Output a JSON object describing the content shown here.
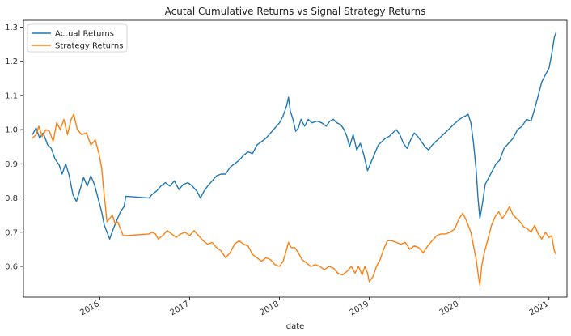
{
  "chart_data": {
    "type": "line",
    "title": "Acutal Cumulative Returns vs Signal Strategy Returns",
    "xlabel": "date",
    "ylabel": "",
    "x_range": [
      2015.15,
      2021.2
    ],
    "ylim": [
      0.51,
      1.32
    ],
    "y_ticks": [
      0.6,
      0.7,
      0.8,
      0.9,
      1.0,
      1.1,
      1.2,
      1.3
    ],
    "y_tick_labels": [
      "0.6",
      "0.7",
      "0.8",
      "0.9",
      "1.0",
      "1.1",
      "1.2",
      "1.3"
    ],
    "x_ticks": [
      2016,
      2017,
      2018,
      2019,
      2020,
      2021
    ],
    "x_tick_labels": [
      "2016",
      "2017",
      "2018",
      "2019",
      "2020",
      "2021"
    ],
    "grid": false,
    "legend_position": "top-left",
    "series": [
      {
        "name": "Actual Returns",
        "color": "#1f77b4",
        "points": [
          [
            2015.25,
            0.985
          ],
          [
            2015.29,
            1.005
          ],
          [
            2015.33,
            0.975
          ],
          [
            2015.37,
            0.99
          ],
          [
            2015.42,
            0.955
          ],
          [
            2015.46,
            0.945
          ],
          [
            2015.5,
            0.915
          ],
          [
            2015.55,
            0.895
          ],
          [
            2015.58,
            0.87
          ],
          [
            2015.62,
            0.9
          ],
          [
            2015.66,
            0.865
          ],
          [
            2015.7,
            0.81
          ],
          [
            2015.74,
            0.79
          ],
          [
            2015.78,
            0.825
          ],
          [
            2015.82,
            0.86
          ],
          [
            2015.86,
            0.835
          ],
          [
            2015.9,
            0.865
          ],
          [
            2015.94,
            0.84
          ],
          [
            2015.98,
            0.8
          ],
          [
            2016.02,
            0.76
          ],
          [
            2016.05,
            0.72
          ],
          [
            2016.08,
            0.7
          ],
          [
            2016.11,
            0.68
          ],
          [
            2016.15,
            0.71
          ],
          [
            2016.19,
            0.735
          ],
          [
            2016.23,
            0.76
          ],
          [
            2016.27,
            0.775
          ],
          [
            2016.29,
            0.805
          ],
          [
            2016.55,
            0.8
          ],
          [
            2016.58,
            0.81
          ],
          [
            2016.63,
            0.82
          ],
          [
            2016.68,
            0.835
          ],
          [
            2016.73,
            0.845
          ],
          [
            2016.78,
            0.835
          ],
          [
            2016.83,
            0.85
          ],
          [
            2016.88,
            0.825
          ],
          [
            2016.93,
            0.84
          ],
          [
            2016.98,
            0.845
          ],
          [
            2017.03,
            0.835
          ],
          [
            2017.08,
            0.82
          ],
          [
            2017.12,
            0.8
          ],
          [
            2017.16,
            0.82
          ],
          [
            2017.2,
            0.835
          ],
          [
            2017.25,
            0.85
          ],
          [
            2017.3,
            0.865
          ],
          [
            2017.35,
            0.87
          ],
          [
            2017.4,
            0.87
          ],
          [
            2017.45,
            0.89
          ],
          [
            2017.5,
            0.9
          ],
          [
            2017.55,
            0.91
          ],
          [
            2017.6,
            0.925
          ],
          [
            2017.65,
            0.935
          ],
          [
            2017.7,
            0.93
          ],
          [
            2017.75,
            0.955
          ],
          [
            2017.8,
            0.965
          ],
          [
            2017.85,
            0.975
          ],
          [
            2017.9,
            0.99
          ],
          [
            2017.95,
            1.005
          ],
          [
            2018.0,
            1.02
          ],
          [
            2018.04,
            1.04
          ],
          [
            2018.08,
            1.07
          ],
          [
            2018.1,
            1.095
          ],
          [
            2018.12,
            1.055
          ],
          [
            2018.15,
            1.03
          ],
          [
            2018.18,
            0.995
          ],
          [
            2018.21,
            1.005
          ],
          [
            2018.24,
            1.03
          ],
          [
            2018.28,
            1.01
          ],
          [
            2018.32,
            1.03
          ],
          [
            2018.36,
            1.02
          ],
          [
            2018.42,
            1.025
          ],
          [
            2018.47,
            1.02
          ],
          [
            2018.52,
            1.01
          ],
          [
            2018.56,
            1.025
          ],
          [
            2018.6,
            1.03
          ],
          [
            2018.64,
            1.02
          ],
          [
            2018.68,
            1.015
          ],
          [
            2018.72,
            1.0
          ],
          [
            2018.75,
            0.98
          ],
          [
            2018.78,
            0.95
          ],
          [
            2018.82,
            0.985
          ],
          [
            2018.86,
            0.94
          ],
          [
            2018.9,
            0.96
          ],
          [
            2018.94,
            0.925
          ],
          [
            2018.98,
            0.88
          ],
          [
            2019.02,
            0.905
          ],
          [
            2019.06,
            0.93
          ],
          [
            2019.1,
            0.955
          ],
          [
            2019.14,
            0.965
          ],
          [
            2019.18,
            0.975
          ],
          [
            2019.22,
            0.98
          ],
          [
            2019.26,
            0.99
          ],
          [
            2019.3,
            1.0
          ],
          [
            2019.34,
            0.985
          ],
          [
            2019.38,
            0.96
          ],
          [
            2019.42,
            0.945
          ],
          [
            2019.46,
            0.97
          ],
          [
            2019.5,
            0.99
          ],
          [
            2019.54,
            0.98
          ],
          [
            2019.58,
            0.965
          ],
          [
            2019.62,
            0.95
          ],
          [
            2019.66,
            0.94
          ],
          [
            2019.7,
            0.955
          ],
          [
            2019.74,
            0.965
          ],
          [
            2019.78,
            0.975
          ],
          [
            2019.82,
            0.985
          ],
          [
            2019.86,
            0.995
          ],
          [
            2019.9,
            1.005
          ],
          [
            2019.94,
            1.015
          ],
          [
            2019.98,
            1.025
          ],
          [
            2020.03,
            1.035
          ],
          [
            2020.07,
            1.04
          ],
          [
            2020.1,
            1.045
          ],
          [
            2020.13,
            1.02
          ],
          [
            2020.16,
            0.96
          ],
          [
            2020.19,
            0.88
          ],
          [
            2020.21,
            0.8
          ],
          [
            2020.23,
            0.74
          ],
          [
            2020.26,
            0.785
          ],
          [
            2020.29,
            0.84
          ],
          [
            2020.33,
            0.86
          ],
          [
            2020.37,
            0.88
          ],
          [
            2020.41,
            0.9
          ],
          [
            2020.45,
            0.91
          ],
          [
            2020.5,
            0.945
          ],
          [
            2020.55,
            0.96
          ],
          [
            2020.6,
            0.975
          ],
          [
            2020.65,
            1.0
          ],
          [
            2020.7,
            1.01
          ],
          [
            2020.75,
            1.03
          ],
          [
            2020.8,
            1.025
          ],
          [
            2020.84,
            1.06
          ],
          [
            2020.88,
            1.1
          ],
          [
            2020.92,
            1.14
          ],
          [
            2020.96,
            1.16
          ],
          [
            2021.0,
            1.18
          ],
          [
            2021.03,
            1.22
          ],
          [
            2021.06,
            1.27
          ],
          [
            2021.08,
            1.285
          ]
        ]
      },
      {
        "name": "Strategy Returns",
        "color": "#ff7f0e",
        "points": [
          [
            2015.25,
            0.975
          ],
          [
            2015.29,
            0.985
          ],
          [
            2015.32,
            1.01
          ],
          [
            2015.36,
            0.98
          ],
          [
            2015.4,
            1.0
          ],
          [
            2015.44,
            0.995
          ],
          [
            2015.48,
            0.965
          ],
          [
            2015.52,
            1.02
          ],
          [
            2015.56,
            1.0
          ],
          [
            2015.6,
            1.03
          ],
          [
            2015.64,
            0.985
          ],
          [
            2015.68,
            1.03
          ],
          [
            2015.71,
            1.045
          ],
          [
            2015.75,
            1.0
          ],
          [
            2015.8,
            0.985
          ],
          [
            2015.85,
            0.99
          ],
          [
            2015.9,
            0.955
          ],
          [
            2015.95,
            0.97
          ],
          [
            2015.99,
            0.93
          ],
          [
            2016.02,
            0.89
          ],
          [
            2016.04,
            0.83
          ],
          [
            2016.06,
            0.78
          ],
          [
            2016.08,
            0.73
          ],
          [
            2016.11,
            0.74
          ],
          [
            2016.14,
            0.75
          ],
          [
            2016.17,
            0.725
          ],
          [
            2016.2,
            0.73
          ],
          [
            2016.23,
            0.71
          ],
          [
            2016.26,
            0.69
          ],
          [
            2016.29,
            0.69
          ],
          [
            2016.55,
            0.695
          ],
          [
            2016.58,
            0.7
          ],
          [
            2016.62,
            0.695
          ],
          [
            2016.65,
            0.68
          ],
          [
            2016.7,
            0.69
          ],
          [
            2016.75,
            0.705
          ],
          [
            2016.8,
            0.695
          ],
          [
            2016.85,
            0.685
          ],
          [
            2016.9,
            0.695
          ],
          [
            2016.95,
            0.7
          ],
          [
            2017.0,
            0.69
          ],
          [
            2017.05,
            0.705
          ],
          [
            2017.1,
            0.69
          ],
          [
            2017.15,
            0.675
          ],
          [
            2017.2,
            0.665
          ],
          [
            2017.25,
            0.67
          ],
          [
            2017.3,
            0.655
          ],
          [
            2017.35,
            0.645
          ],
          [
            2017.4,
            0.625
          ],
          [
            2017.45,
            0.64
          ],
          [
            2017.5,
            0.665
          ],
          [
            2017.55,
            0.675
          ],
          [
            2017.6,
            0.665
          ],
          [
            2017.65,
            0.66
          ],
          [
            2017.7,
            0.635
          ],
          [
            2017.75,
            0.625
          ],
          [
            2017.8,
            0.615
          ],
          [
            2017.85,
            0.625
          ],
          [
            2017.9,
            0.62
          ],
          [
            2017.95,
            0.605
          ],
          [
            2018.0,
            0.6
          ],
          [
            2018.04,
            0.615
          ],
          [
            2018.08,
            0.65
          ],
          [
            2018.1,
            0.67
          ],
          [
            2018.13,
            0.655
          ],
          [
            2018.17,
            0.655
          ],
          [
            2018.21,
            0.64
          ],
          [
            2018.25,
            0.62
          ],
          [
            2018.3,
            0.61
          ],
          [
            2018.35,
            0.6
          ],
          [
            2018.4,
            0.605
          ],
          [
            2018.45,
            0.6
          ],
          [
            2018.5,
            0.59
          ],
          [
            2018.55,
            0.6
          ],
          [
            2018.6,
            0.595
          ],
          [
            2018.65,
            0.58
          ],
          [
            2018.7,
            0.575
          ],
          [
            2018.75,
            0.585
          ],
          [
            2018.8,
            0.6
          ],
          [
            2018.84,
            0.58
          ],
          [
            2018.88,
            0.6
          ],
          [
            2018.92,
            0.575
          ],
          [
            2018.95,
            0.6
          ],
          [
            2018.98,
            0.58
          ],
          [
            2019.0,
            0.555
          ],
          [
            2019.04,
            0.57
          ],
          [
            2019.08,
            0.6
          ],
          [
            2019.12,
            0.62
          ],
          [
            2019.16,
            0.65
          ],
          [
            2019.2,
            0.675
          ],
          [
            2019.25,
            0.675
          ],
          [
            2019.3,
            0.67
          ],
          [
            2019.35,
            0.665
          ],
          [
            2019.4,
            0.67
          ],
          [
            2019.45,
            0.65
          ],
          [
            2019.5,
            0.66
          ],
          [
            2019.55,
            0.655
          ],
          [
            2019.6,
            0.64
          ],
          [
            2019.65,
            0.66
          ],
          [
            2019.7,
            0.675
          ],
          [
            2019.75,
            0.69
          ],
          [
            2019.8,
            0.695
          ],
          [
            2019.85,
            0.695
          ],
          [
            2019.9,
            0.7
          ],
          [
            2019.95,
            0.71
          ],
          [
            2020.0,
            0.74
          ],
          [
            2020.04,
            0.755
          ],
          [
            2020.07,
            0.74
          ],
          [
            2020.1,
            0.72
          ],
          [
            2020.13,
            0.7
          ],
          [
            2020.16,
            0.66
          ],
          [
            2020.19,
            0.62
          ],
          [
            2020.21,
            0.58
          ],
          [
            2020.23,
            0.545
          ],
          [
            2020.25,
            0.6
          ],
          [
            2020.28,
            0.64
          ],
          [
            2020.32,
            0.68
          ],
          [
            2020.36,
            0.72
          ],
          [
            2020.4,
            0.745
          ],
          [
            2020.44,
            0.76
          ],
          [
            2020.48,
            0.74
          ],
          [
            2020.52,
            0.755
          ],
          [
            2020.56,
            0.775
          ],
          [
            2020.6,
            0.75
          ],
          [
            2020.64,
            0.74
          ],
          [
            2020.68,
            0.73
          ],
          [
            2020.72,
            0.715
          ],
          [
            2020.76,
            0.71
          ],
          [
            2020.8,
            0.7
          ],
          [
            2020.84,
            0.72
          ],
          [
            2020.88,
            0.695
          ],
          [
            2020.92,
            0.68
          ],
          [
            2020.96,
            0.7
          ],
          [
            2021.0,
            0.685
          ],
          [
            2021.03,
            0.69
          ],
          [
            2021.06,
            0.645
          ],
          [
            2021.08,
            0.635
          ]
        ]
      }
    ]
  }
}
